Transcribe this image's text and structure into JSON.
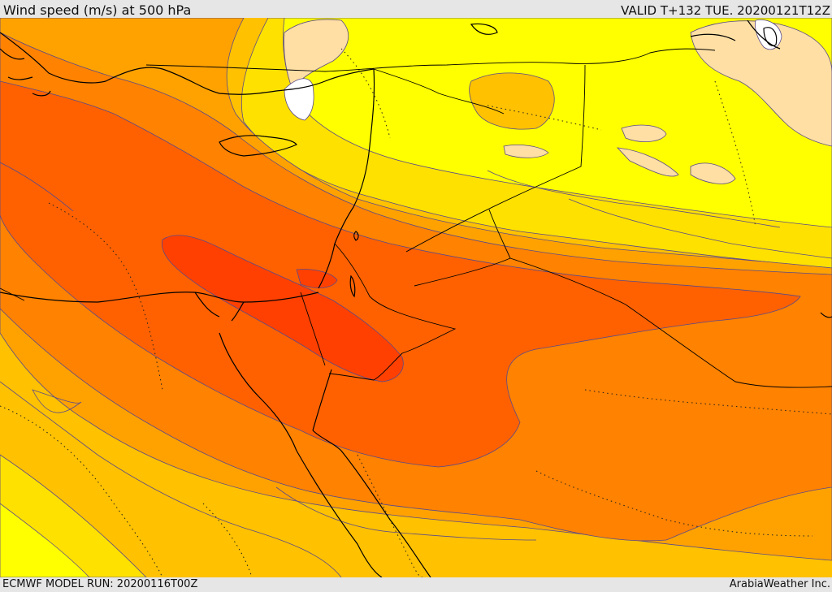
{
  "header": {
    "title": "Wind speed (m/s) at 500 hPa",
    "valid": "VALID T+132 TUE. 20200121T12Z"
  },
  "footer": {
    "model_run": "ECMWF MODEL RUN: 20200116T00Z",
    "credit": "ArabiaWeather Inc."
  },
  "map": {
    "field": "wind-speed",
    "palette": {
      "calm": "#ffffff",
      "light": "#ffdfa4",
      "yellow": "#ffff00",
      "yellow_orange": "#ffe100",
      "amber": "#ffc100",
      "orange_light": "#ffa200",
      "orange": "#ff8200",
      "orange_red": "#ff6100",
      "red": "#ff4000"
    },
    "coastline_color": "#000000",
    "contour_color": "#5a4a8a"
  }
}
